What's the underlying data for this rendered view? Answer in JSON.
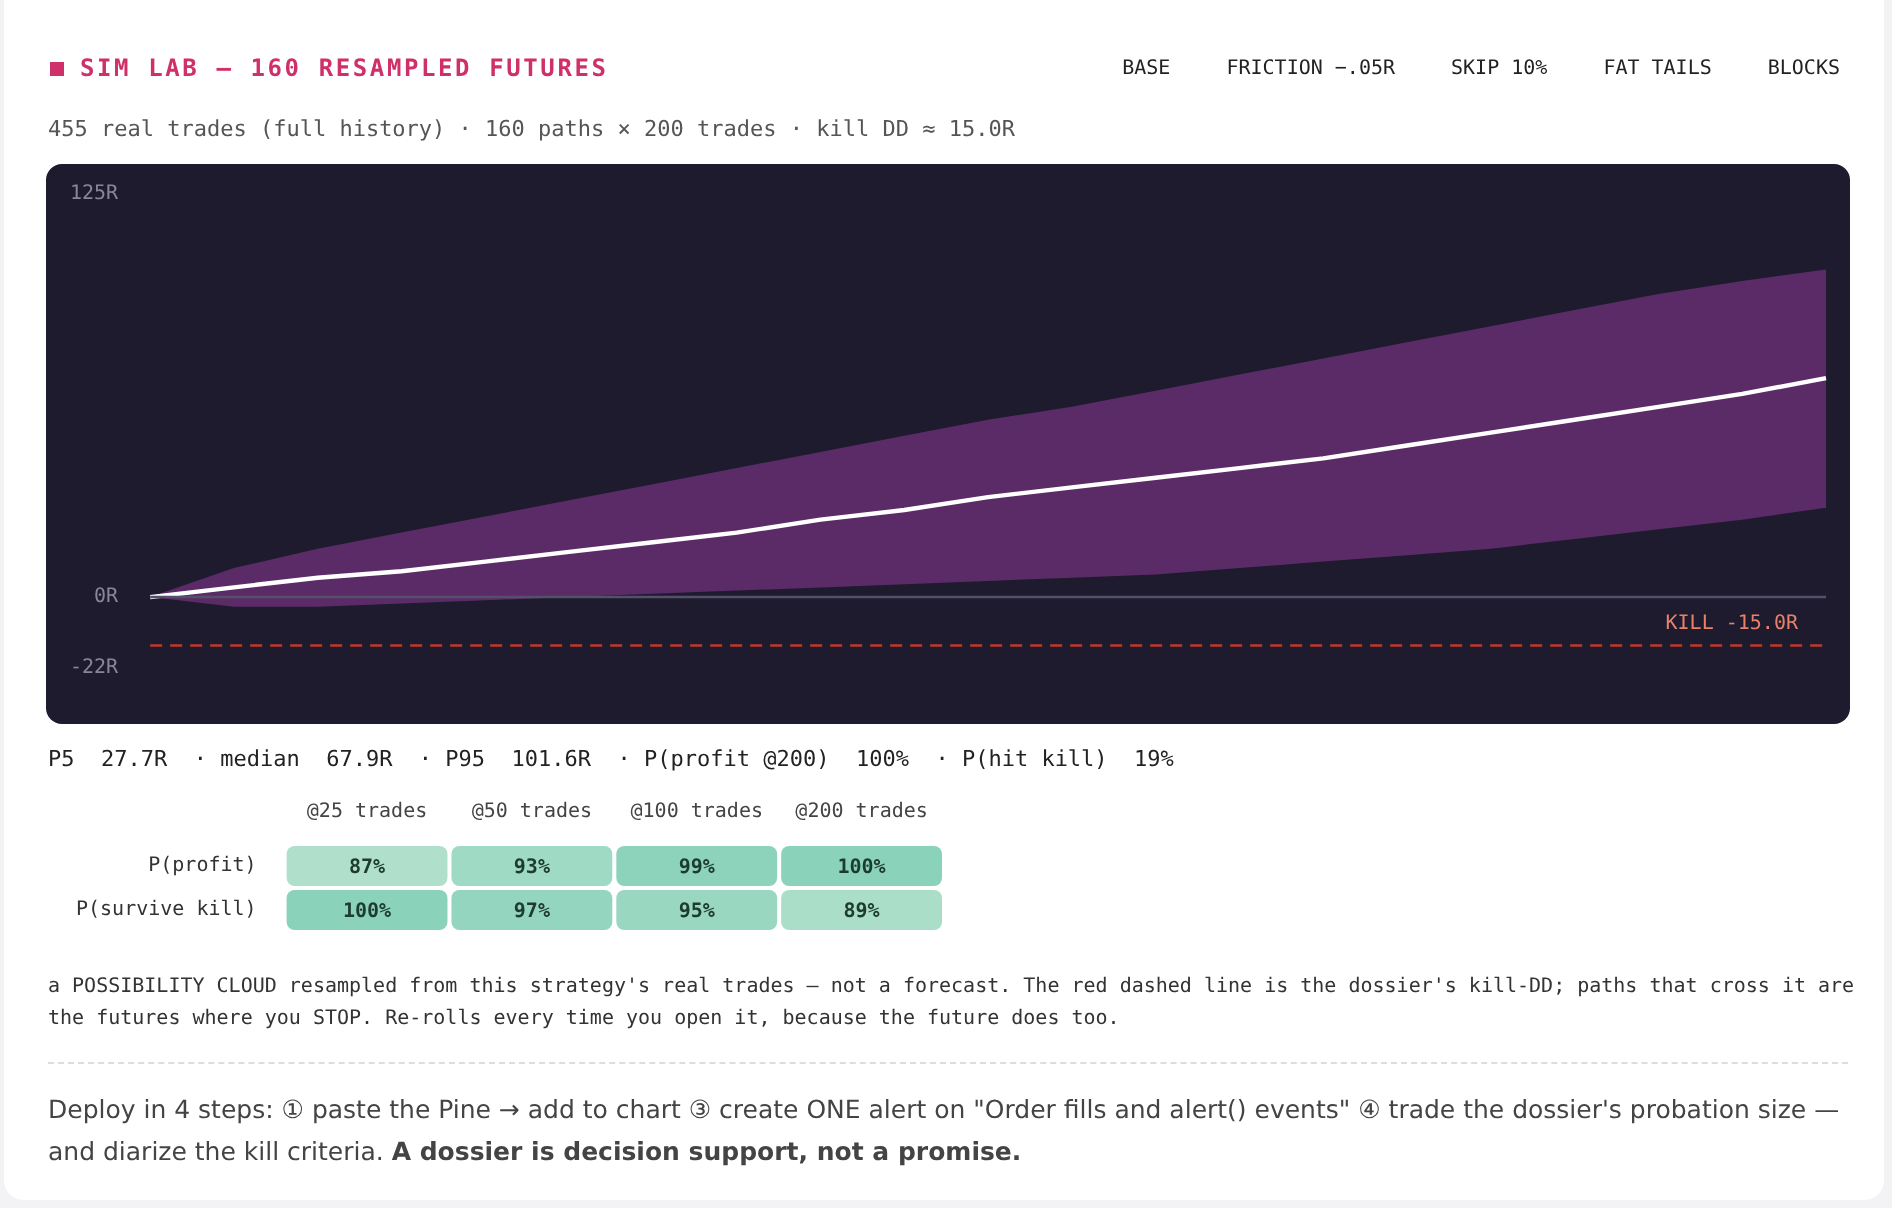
{
  "chart_data": [
    {
      "type": "line",
      "title": "SIM LAB — 160 RESAMPLED FUTURES",
      "subtitle": "455 real trades (full history) · 160 paths × 200 trades · kill DD ≈ 15.0R",
      "categories": [
        null,
        null,
        null,
        null,
        null,
        null,
        null,
        null,
        null,
        null,
        null,
        null,
        null,
        null,
        null,
        null,
        null,
        null,
        null,
        null,
        null
      ],
      "series": [
        {
          "color": "#ffffff",
          "values": [
            0,
            3,
            6,
            8,
            11,
            14,
            17,
            20,
            24,
            27,
            31,
            34,
            37,
            40,
            43,
            47,
            51,
            55,
            59,
            63,
            67.9
          ],
          "lower": [
            0,
            -3,
            -3,
            -2,
            -1,
            0,
            1,
            2,
            3,
            4,
            5,
            6,
            7,
            9,
            11,
            13,
            15,
            18,
            21,
            24,
            27.7
          ],
          "upper": [
            0,
            9,
            15,
            20,
            25,
            30,
            35,
            40,
            45,
            50,
            55,
            59,
            64,
            69,
            74,
            79,
            84,
            89,
            94,
            98,
            101.6
          ]
        }
      ],
      "ylim": [
        -22,
        125
      ],
      "yticks": [
        {
          "value": 125,
          "label": "125R"
        },
        {
          "value": 0,
          "label": "0R"
        },
        {
          "value": -22,
          "label": "-22R"
        }
      ],
      "tick_labels": "y",
      "grid": false,
      "legend": false,
      "marker": "none",
      "line_style": "solid",
      "ref_lines": [
        {
          "axis": "y",
          "value": 0,
          "label": null,
          "color": "#55506a",
          "line_style": "solid"
        },
        {
          "axis": "y",
          "value": -15,
          "label": "KILL -15.0R",
          "color": "#c0392b",
          "line_style": "dashed"
        }
      ],
      "annotations": [
        "BASE",
        "FRICTION −.05R",
        "SKIP 10%",
        "FAT TAILS",
        "BLOCKS",
        "P5  27.7R  · median  67.9R  · P95  101.6R  · P(profit @200)  100%  · P(hit kill)  19%"
      ]
    },
    {
      "type": "heatmap",
      "categories": [
        "@25 trades",
        "@50 trades",
        "@100 trades",
        "@200 trades"
      ],
      "y_categories": [
        "P(profit)",
        "P(survive kill)"
      ],
      "cells": [
        [
          87,
          93,
          99,
          100
        ],
        [
          100,
          97,
          95,
          89
        ]
      ],
      "cell_labels": [
        [
          "87%",
          "93%",
          "99%",
          "100%"
        ],
        [
          "100%",
          "97%",
          "95%",
          "89%"
        ]
      ],
      "annotations": [
        "a POSSIBILITY CLOUD resampled from this strategy's real trades — not a forecast. The red dashed line is the dossier's kill-DD; paths that cross it are the futures where you STOP. Re-rolls every time you open it, because the future does too.",
        "Deploy in 4 steps: ① paste the Pine → add to chart ③ create ONE alert on \"Order fills and alert() events\" ④ trade the dossier's probation size — and diarize the kill criteria.",
        "A dossier is decision support, not a promise."
      ]
    }
  ]
}
